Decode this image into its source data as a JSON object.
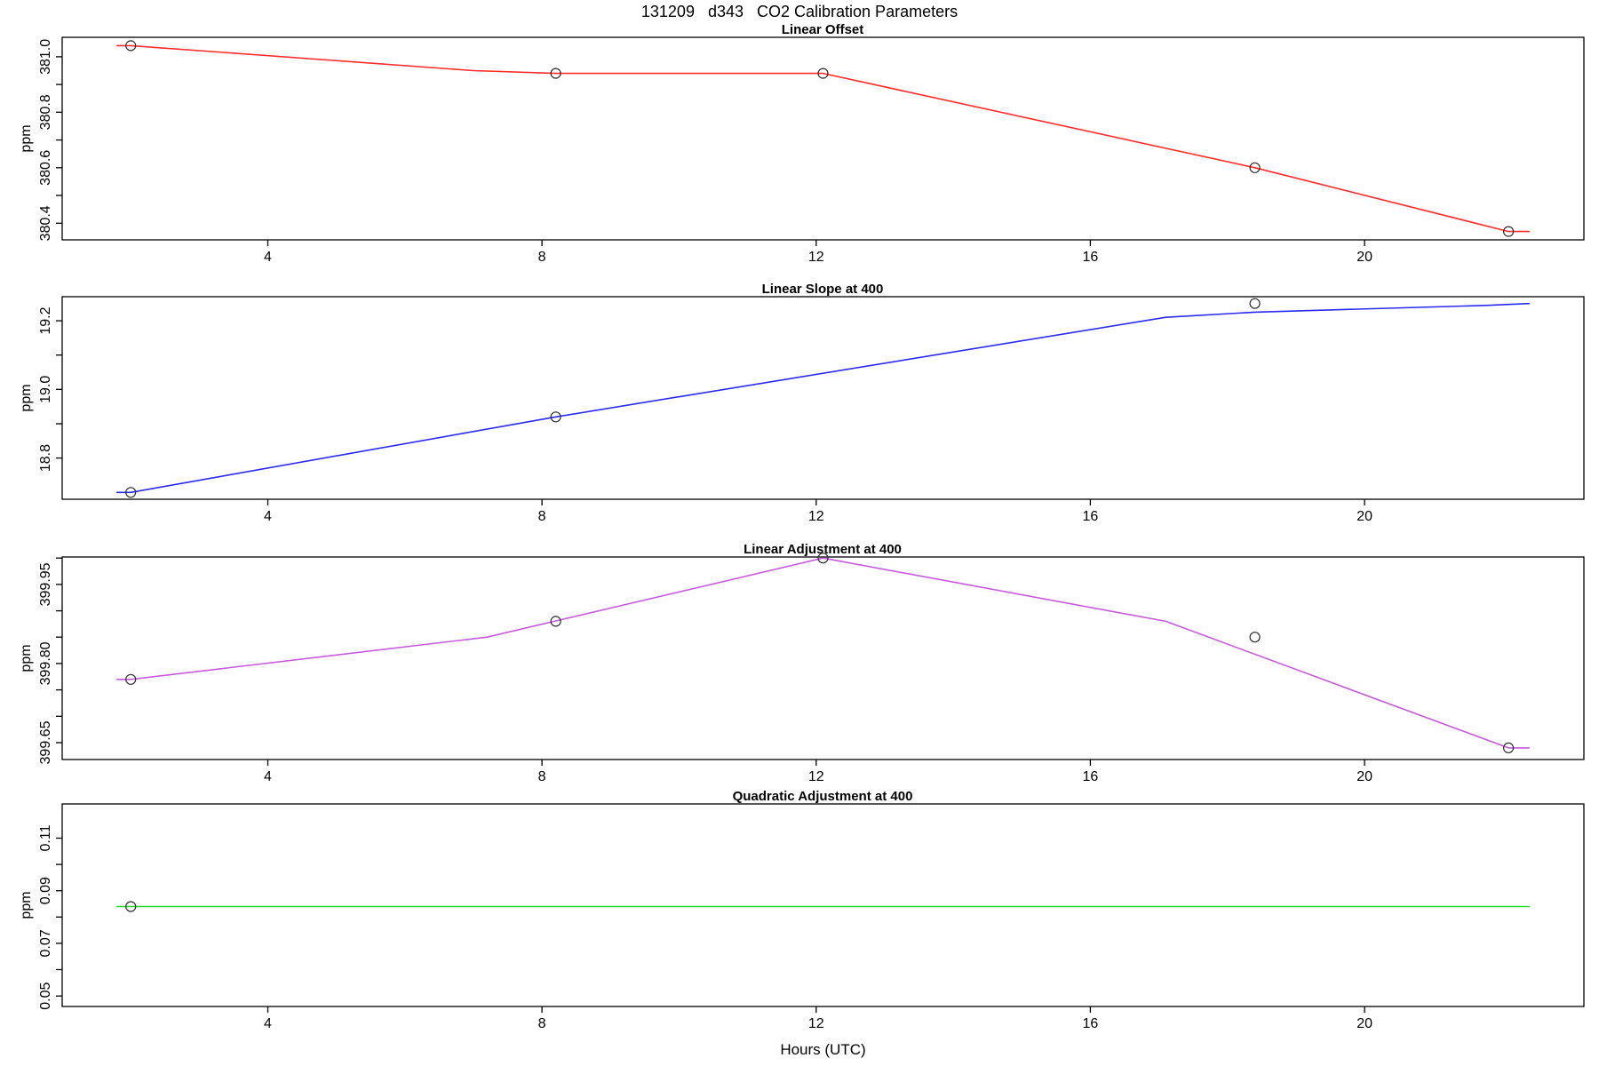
{
  "main_title": "131209   d343   CO2 Calibration Parameters",
  "chart_data": {
    "type": "line",
    "title": "131209   d343   CO2 Calibration Parameters",
    "grid": false,
    "legend": "none",
    "box": true,
    "x_axis": {
      "label": "Hours (UTC)",
      "ticks": [
        4,
        8,
        12,
        16,
        20
      ],
      "range": [
        1.0,
        23.2
      ]
    },
    "panels": [
      {
        "id": "linear-offset",
        "title": "Linear Offset",
        "ylabel": "ppm",
        "color": "#ff2a2a",
        "ylim": [
          380.34,
          381.07
        ],
        "yticks": [
          {
            "v": 380.4,
            "label": "380.4"
          },
          {
            "v": 380.5,
            "label": ""
          },
          {
            "v": 380.6,
            "label": "380.6"
          },
          {
            "v": 380.7,
            "label": ""
          },
          {
            "v": 380.8,
            "label": "380.8"
          },
          {
            "v": 380.9,
            "label": ""
          },
          {
            "v": 381.0,
            "label": "381.0"
          }
        ],
        "points": {
          "hours": [
            2.0,
            8.2,
            12.1,
            18.4,
            22.1
          ],
          "values": [
            381.04,
            380.94,
            380.94,
            380.6,
            380.37
          ]
        },
        "line": {
          "hours": [
            1.8,
            2.0,
            7.0,
            8.2,
            12.1,
            18.4,
            22.1,
            22.4
          ],
          "values": [
            381.04,
            381.04,
            380.95,
            380.94,
            380.94,
            380.6,
            380.37,
            380.37
          ]
        }
      },
      {
        "id": "linear-slope-at-400",
        "title": "Linear Slope at 400",
        "ylabel": "ppm",
        "color": "#2a2aee",
        "ylim": [
          18.68,
          19.27
        ],
        "yticks": [
          {
            "v": 18.8,
            "label": "18.8"
          },
          {
            "v": 18.9,
            "label": ""
          },
          {
            "v": 19.0,
            "label": "19.0"
          },
          {
            "v": 19.1,
            "label": ""
          },
          {
            "v": 19.2,
            "label": "19.2"
          }
        ],
        "points": {
          "hours": [
            2.0,
            8.2,
            18.4
          ],
          "values": [
            18.7,
            18.92,
            19.25
          ]
        },
        "line": {
          "hours": [
            1.8,
            2.0,
            8.2,
            17.1,
            18.4,
            21.8,
            22.4
          ],
          "values": [
            18.7,
            18.7,
            18.92,
            19.21,
            19.225,
            19.245,
            19.25
          ]
        }
      },
      {
        "id": "linear-adjustment-at-400",
        "title": "Linear Adjustment at 400",
        "ylabel": "ppm",
        "color": "#c65bdb",
        "ylim": [
          399.618,
          400.002
        ],
        "yticks": [
          {
            "v": 399.65,
            "label": "399.65"
          },
          {
            "v": 399.7,
            "label": ""
          },
          {
            "v": 399.75,
            "label": ""
          },
          {
            "v": 399.8,
            "label": "399.80"
          },
          {
            "v": 399.85,
            "label": ""
          },
          {
            "v": 399.9,
            "label": ""
          },
          {
            "v": 399.95,
            "label": "399.95"
          },
          {
            "v": 400.0,
            "label": ""
          }
        ],
        "points": {
          "hours": [
            2.0,
            8.2,
            12.1,
            18.4,
            22.1
          ],
          "values": [
            399.77,
            399.88,
            400.0,
            399.85,
            399.64
          ]
        },
        "line": {
          "hours": [
            1.8,
            2.0,
            7.2,
            12.1,
            17.1,
            22.1,
            22.4
          ],
          "values": [
            399.77,
            399.77,
            399.85,
            400.0,
            399.88,
            399.64,
            399.64
          ]
        }
      },
      {
        "id": "quadratic-adjustment-at-400",
        "title": "Quadratic Adjustment at 400",
        "ylabel": "ppm",
        "color": "#22dd22",
        "ylim": [
          0.046,
          0.123
        ],
        "yticks": [
          {
            "v": 0.05,
            "label": "0.05"
          },
          {
            "v": 0.06,
            "label": ""
          },
          {
            "v": 0.07,
            "label": "0.07"
          },
          {
            "v": 0.08,
            "label": ""
          },
          {
            "v": 0.09,
            "label": "0.09"
          },
          {
            "v": 0.1,
            "label": ""
          },
          {
            "v": 0.11,
            "label": "0.11"
          }
        ],
        "points": {
          "hours": [
            2.0
          ],
          "values": [
            0.084
          ]
        },
        "line": {
          "hours": [
            1.8,
            22.4
          ],
          "values": [
            0.084,
            0.084
          ]
        }
      }
    ]
  },
  "x_axis_label": "Hours (UTC)"
}
